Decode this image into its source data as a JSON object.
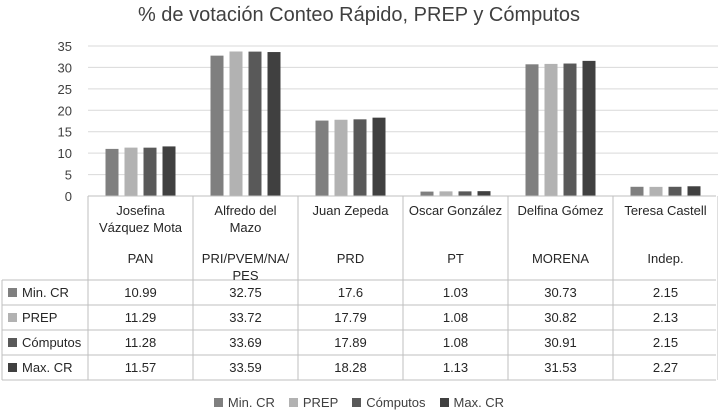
{
  "chart_data": {
    "type": "bar",
    "title": "% de votación Conteo Rápido, PREP y Cómputos",
    "ylim": [
      0,
      35
    ],
    "yticks": [
      "0",
      "5",
      "10",
      "15",
      "20",
      "25",
      "30",
      "35"
    ],
    "categories": [
      {
        "name": "Josefina Vázquez Mota",
        "name_lines": [
          "Josefina",
          "Vázquez Mota"
        ],
        "party_lines": [
          "PAN"
        ]
      },
      {
        "name": "Alfredo del Mazo",
        "name_lines": [
          "Alfredo del",
          "Mazo"
        ],
        "party_lines": [
          "PRI/PVEM/NA/",
          "PES"
        ]
      },
      {
        "name": "Juan Zepeda",
        "name_lines": [
          "Juan Zepeda"
        ],
        "party_lines": [
          "PRD"
        ]
      },
      {
        "name": "Oscar González",
        "name_lines": [
          "Oscar González"
        ],
        "party_lines": [
          "PT"
        ]
      },
      {
        "name": "Delfina Gómez",
        "name_lines": [
          "Delfina Gómez"
        ],
        "party_lines": [
          "MORENA"
        ]
      },
      {
        "name": "Teresa Castell",
        "name_lines": [
          "Teresa Castell"
        ],
        "party_lines": [
          "Indep."
        ]
      }
    ],
    "series": [
      {
        "name": "Min. CR",
        "color": "#7f7f7f",
        "values": [
          "10.99",
          "32.75",
          "17.6",
          "1.03",
          "30.73",
          "2.15"
        ]
      },
      {
        "name": "PREP",
        "color": "#b2b2b2",
        "values": [
          "11.29",
          "33.72",
          "17.79",
          "1.08",
          "30.82",
          "2.13"
        ]
      },
      {
        "name": "Cómputos",
        "color": "#595959",
        "values": [
          "11.28",
          "33.69",
          "17.89",
          "1.08",
          "30.91",
          "2.15"
        ]
      },
      {
        "name": "Max. CR",
        "color": "#404040",
        "values": [
          "11.57",
          "33.59",
          "18.28",
          "1.13",
          "31.53",
          "2.27"
        ]
      }
    ],
    "legend_position": "bottom",
    "grid": true
  }
}
